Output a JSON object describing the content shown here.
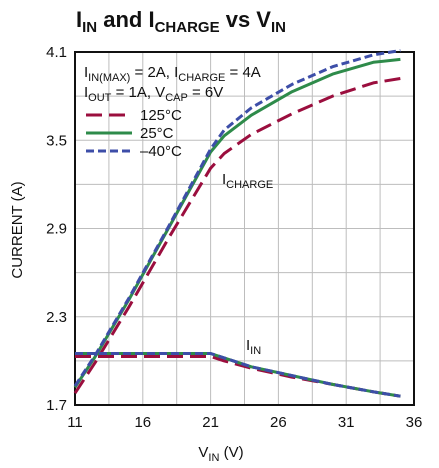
{
  "chart_data": {
    "type": "line",
    "title": {
      "main1": "I",
      "sub1": "IN",
      "mid": " and I",
      "sub2": "CHARGE",
      "main2": " vs V",
      "sub3": "IN"
    },
    "xlabel": {
      "main": "V",
      "sub": "IN",
      "unit": " (V)"
    },
    "ylabel": "CURRENT (A)",
    "xlim": [
      11,
      36
    ],
    "ylim": [
      1.7,
      4.1
    ],
    "xticks": [
      "11",
      "16",
      "21",
      "26",
      "31",
      "36"
    ],
    "yticks": [
      "1.7",
      "2.3",
      "2.9",
      "3.5",
      "4.1"
    ],
    "grid": true,
    "conditions": {
      "line1": {
        "a": "I",
        "a_sub": "IN(MAX)",
        "b": " = 2A, I",
        "b_sub": "CHARGE",
        "c": " = 4A"
      },
      "line2": {
        "a": "I",
        "a_sub": "OUT",
        "b": " = 1A, V",
        "b_sub": "CAP",
        "c": " = 6V"
      }
    },
    "annotations": {
      "icharge": {
        "main": "I",
        "sub": "CHARGE"
      },
      "iin": {
        "main": "I",
        "sub": "IN"
      }
    },
    "legend_position": "top-left",
    "series": [
      {
        "name": "125°C",
        "color": "#9b0e3e",
        "dash": "long-dash",
        "icharge": {
          "x": [
            11,
            12.5,
            15,
            18,
            21,
            22,
            24,
            27,
            30,
            33,
            35
          ],
          "y": [
            1.78,
            1.99,
            2.37,
            2.85,
            3.31,
            3.41,
            3.54,
            3.68,
            3.8,
            3.89,
            3.92
          ]
        },
        "iin": {
          "x": [
            11,
            14,
            18,
            21,
            22,
            24,
            27,
            30,
            33,
            35
          ],
          "y": [
            2.03,
            2.03,
            2.03,
            2.03,
            2.0,
            1.95,
            1.89,
            1.84,
            1.79,
            1.76
          ]
        }
      },
      {
        "name": "25°C",
        "color": "#2e8b4a",
        "dash": "solid",
        "icharge": {
          "x": [
            11,
            12.5,
            15,
            18,
            21,
            22,
            24,
            27,
            30,
            33,
            35
          ],
          "y": [
            1.82,
            2.03,
            2.42,
            2.92,
            3.42,
            3.53,
            3.67,
            3.83,
            3.95,
            4.03,
            4.05
          ]
        },
        "iin": {
          "x": [
            11,
            14,
            18,
            21,
            22,
            24,
            27,
            30,
            33,
            35
          ],
          "y": [
            2.05,
            2.05,
            2.05,
            2.05,
            2.02,
            1.96,
            1.9,
            1.84,
            1.79,
            1.76
          ]
        }
      },
      {
        "name": "–40°C",
        "color": "#3d4ea8",
        "dash": "short-dash",
        "icharge": {
          "x": [
            11,
            12.5,
            15,
            18,
            21,
            22,
            24,
            27,
            30,
            33,
            35
          ],
          "y": [
            1.83,
            2.04,
            2.43,
            2.93,
            3.44,
            3.57,
            3.72,
            3.88,
            4.0,
            4.08,
            4.11
          ]
        },
        "iin": {
          "x": [
            11,
            14,
            18,
            21,
            22,
            24,
            27,
            30,
            33,
            35
          ],
          "y": [
            2.05,
            2.05,
            2.05,
            2.05,
            2.02,
            1.96,
            1.9,
            1.84,
            1.79,
            1.76
          ]
        }
      }
    ]
  }
}
